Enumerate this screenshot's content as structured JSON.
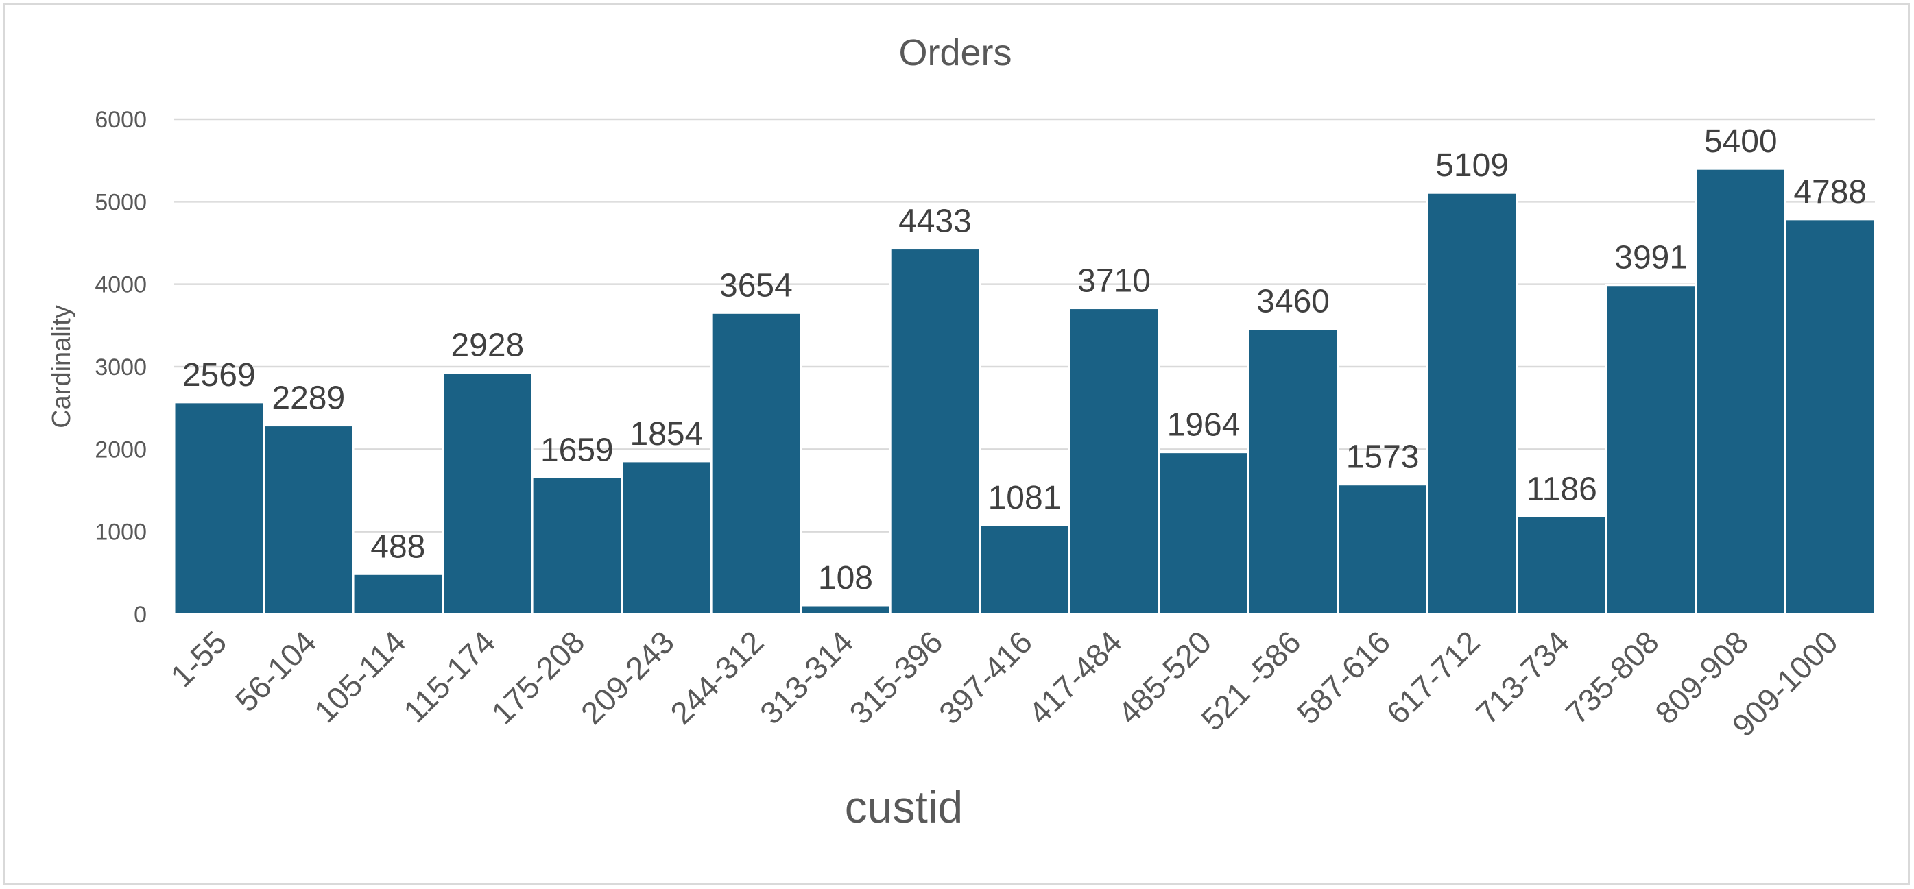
{
  "chart_data": {
    "type": "bar",
    "title": "Orders",
    "xlabel": "custid",
    "ylabel": "Cardinality",
    "categories": [
      "1-55",
      "56-104",
      "105-114",
      "115-174",
      "175-208",
      "209-243",
      "244-312",
      "313-314",
      "315-396",
      "397-416",
      "417-484",
      "485-520",
      "521 -586",
      "587-616",
      "617-712",
      "713-734",
      "735-808",
      "809-908",
      "909-1000"
    ],
    "values": [
      2569,
      2289,
      488,
      2928,
      1659,
      1854,
      3654,
      108,
      4433,
      1081,
      3710,
      1964,
      3460,
      1573,
      5109,
      1186,
      3991,
      5400,
      4788
    ],
    "yticks": [
      0,
      1000,
      2000,
      3000,
      4000,
      5000,
      6000
    ],
    "ylim": [
      0,
      6000
    ],
    "grid": true,
    "legend": "none",
    "data_labels": true,
    "bar_color": "#1a6185"
  }
}
